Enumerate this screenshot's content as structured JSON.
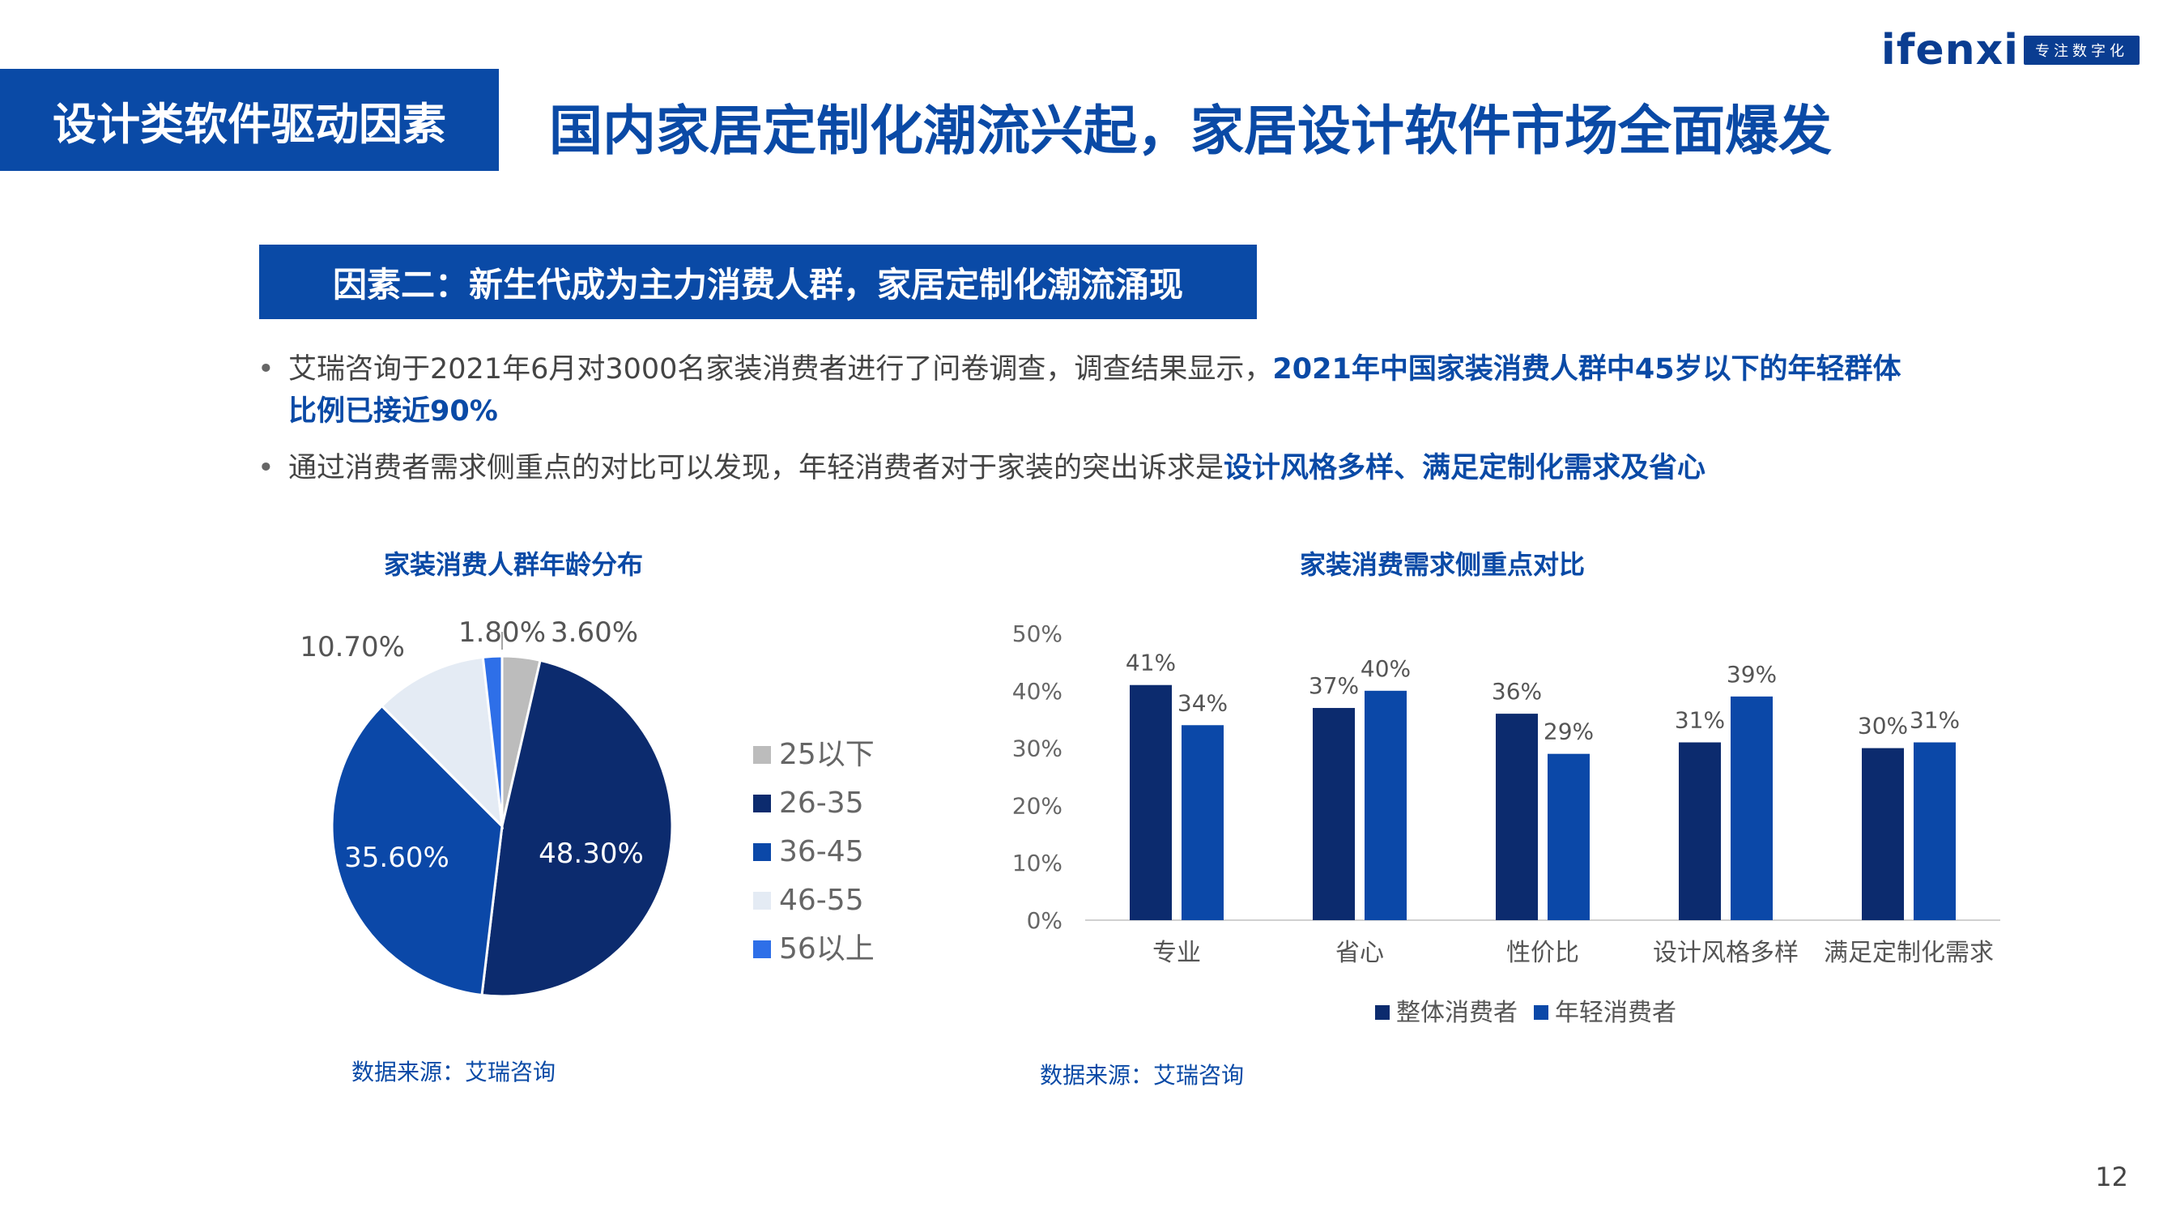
{
  "logo": {
    "wordmark": "ifenxi",
    "tagline": "专注数字化"
  },
  "section_tag": "设计类软件驱动因素",
  "headline": "国内家居定制化潮流兴起，家居设计软件市场全面爆发",
  "factor_banner": "因素二：新生代成为主力消费人群，家居定制化潮流涌现",
  "bullets": [
    {
      "text": "艾瑞咨询于2021年6月对3000名家装消费者进行了问卷调查，调查结果显示，",
      "highlight": "2021年中国家装消费人群中45岁以下的年轻群体比例已接近90%"
    },
    {
      "text": "通过消费者需求侧重点的对比可以发现，年轻消费者对于家装的突出诉求是",
      "highlight": "设计风格多样、满足定制化需求及省心"
    }
  ],
  "page_number": "12",
  "colors": {
    "brand_blue": "#0a4aa6",
    "navy": "#0c2b6e",
    "blue": "#0b48a8",
    "light_blue": "#e4ebf4",
    "bright_blue": "#2e6fe8",
    "gray": "#bcbcbc"
  },
  "chart_data": [
    {
      "type": "pie",
      "title": "家装消费人群年龄分布",
      "source": "数据来源：艾瑞咨询",
      "legend_position": "right",
      "slices": [
        {
          "label": "25以下",
          "value": 3.6,
          "display": "3.60%",
          "color": "#bcbcbc"
        },
        {
          "label": "26-35",
          "value": 48.3,
          "display": "48.30%",
          "color": "#0c2b6e"
        },
        {
          "label": "36-45",
          "value": 35.6,
          "display": "35.60%",
          "color": "#0b48a8"
        },
        {
          "label": "46-55",
          "value": 10.7,
          "display": "10.70%",
          "color": "#e4ebf4"
        },
        {
          "label": "56以上",
          "value": 1.8,
          "display": "1.80%",
          "color": "#2e6fe8"
        }
      ]
    },
    {
      "type": "bar",
      "title": "家装消费需求侧重点对比",
      "source": "数据来源：艾瑞咨询",
      "categories": [
        "专业",
        "省心",
        "性价比",
        "设计风格多样",
        "满足定制化需求"
      ],
      "series": [
        {
          "name": "整体消费者",
          "values": [
            41,
            37,
            36,
            31,
            30
          ],
          "color": "#0c2b6e"
        },
        {
          "name": "年轻消费者",
          "values": [
            34,
            40,
            29,
            39,
            31
          ],
          "color": "#0b48a8"
        }
      ],
      "ylim": [
        0,
        50
      ],
      "yticks": [
        "0%",
        "10%",
        "20%",
        "30%",
        "40%",
        "50%"
      ],
      "value_suffix": "%",
      "legend_position": "bottom",
      "grid": false
    }
  ]
}
